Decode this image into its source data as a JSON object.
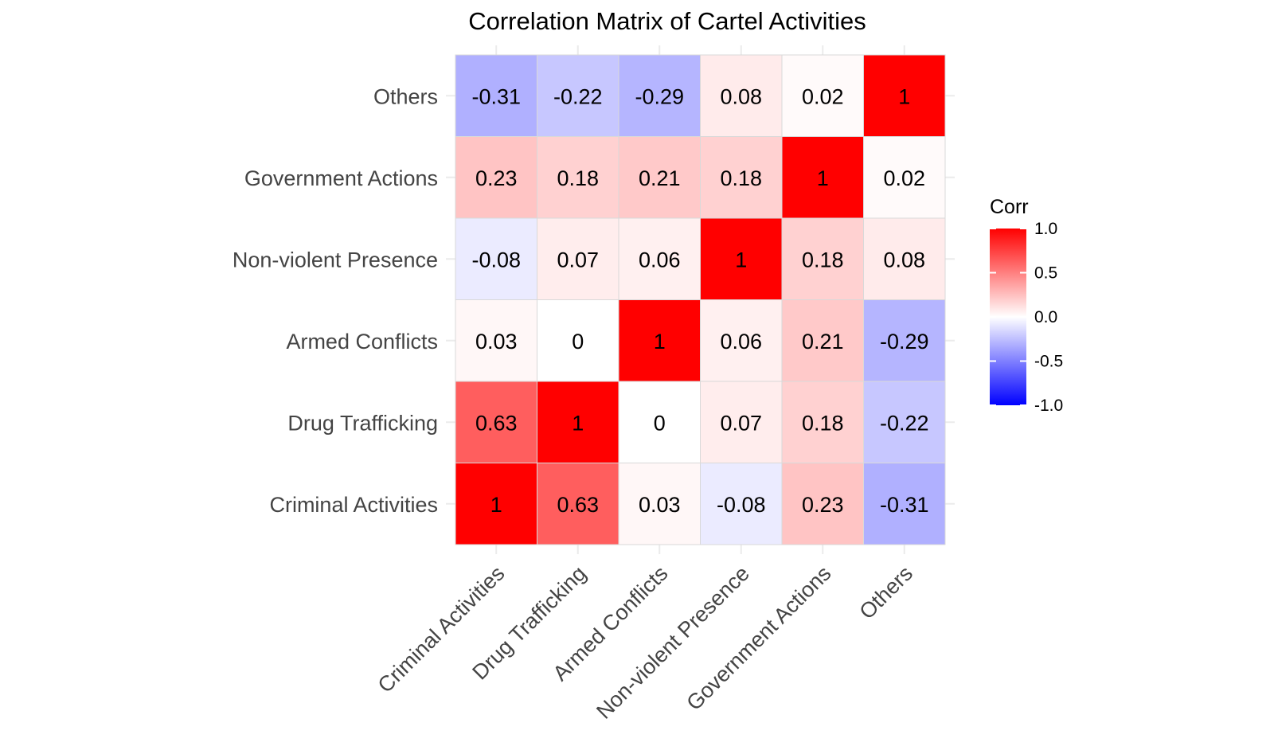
{
  "chart_data": {
    "type": "heatmap",
    "title": "Correlation Matrix of Cartel Activities",
    "variables": [
      "Criminal Activities",
      "Drug Trafficking",
      "Armed Conflicts",
      "Non-violent Presence",
      "Government Actions",
      "Others"
    ],
    "matrix": [
      [
        1,
        0.63,
        0.03,
        -0.08,
        0.23,
        -0.31
      ],
      [
        0.63,
        1,
        0,
        0.07,
        0.18,
        -0.22
      ],
      [
        0.03,
        0,
        1,
        0.06,
        0.21,
        -0.29
      ],
      [
        -0.08,
        0.07,
        0.06,
        1,
        0.18,
        0.08
      ],
      [
        0.23,
        0.18,
        0.21,
        0.18,
        1,
        0.02
      ],
      [
        -0.31,
        -0.22,
        -0.29,
        0.08,
        0.02,
        1
      ]
    ],
    "value_labels": [
      [
        "1",
        "0.63",
        "0.03",
        "-0.08",
        "0.23",
        "-0.31"
      ],
      [
        "0.63",
        "1",
        "0",
        "0.07",
        "0.18",
        "-0.22"
      ],
      [
        "0.03",
        "0",
        "1",
        "0.06",
        "0.21",
        "-0.29"
      ],
      [
        "-0.08",
        "0.07",
        "0.06",
        "1",
        "0.18",
        "0.08"
      ],
      [
        "0.23",
        "0.18",
        "0.21",
        "0.18",
        "1",
        "0.02"
      ],
      [
        "-0.31",
        "-0.22",
        "-0.29",
        "0.08",
        "0.02",
        "1"
      ]
    ],
    "x_order": "left-to-right",
    "y_order": "bottom-to-top",
    "color_scale": {
      "low": "#0000ff",
      "mid": "#ffffff",
      "high": "#ff0000",
      "limits": [
        -1,
        1
      ]
    },
    "legend": {
      "title": "Corr",
      "placement": "right",
      "ticks": [
        "1.0",
        "0.5",
        "0.0",
        "-0.5",
        "-1.0"
      ],
      "tick_values": [
        1,
        0.5,
        0,
        -0.5,
        -1
      ]
    },
    "grid": true,
    "xlabel": "",
    "ylabel": ""
  }
}
